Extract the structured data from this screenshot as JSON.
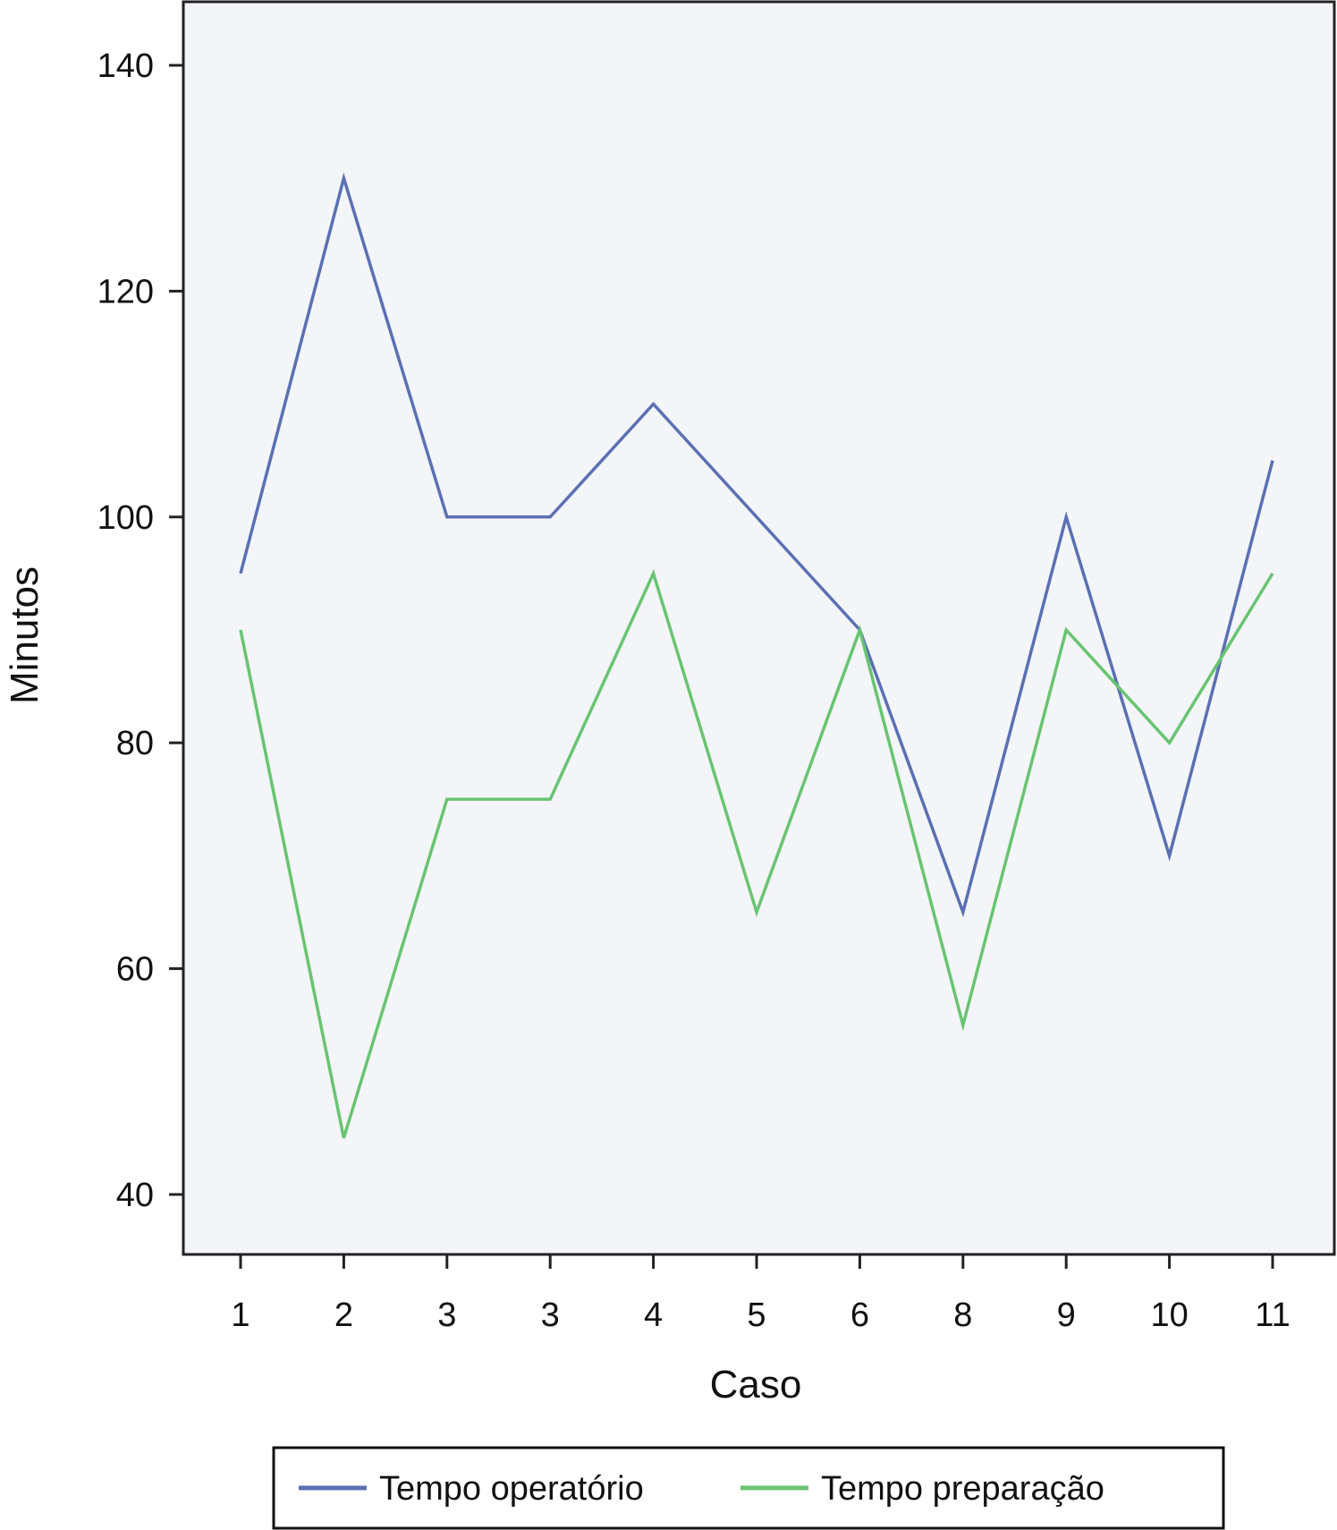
{
  "chart_data": {
    "type": "line",
    "xlabel": "Caso",
    "ylabel": "Minutos",
    "categories": [
      "1",
      "2",
      "3",
      "3",
      "4",
      "5",
      "6",
      "8",
      "9",
      "10",
      "11"
    ],
    "ylim": [
      35,
      145
    ],
    "yticks": [
      40,
      60,
      80,
      100,
      120,
      140
    ],
    "grid": false,
    "legend_position": "bottom",
    "plot_background": "#f3f5f8",
    "series": [
      {
        "name": "Tempo operatório",
        "color": "#5b70b3",
        "values": [
          95,
          130,
          100,
          100,
          110,
          100,
          90,
          65,
          100,
          70,
          105
        ]
      },
      {
        "name": "Tempo preparação",
        "color": "#69c472",
        "values": [
          90,
          45,
          75,
          75,
          95,
          65,
          90,
          55,
          90,
          80,
          95
        ]
      }
    ]
  }
}
